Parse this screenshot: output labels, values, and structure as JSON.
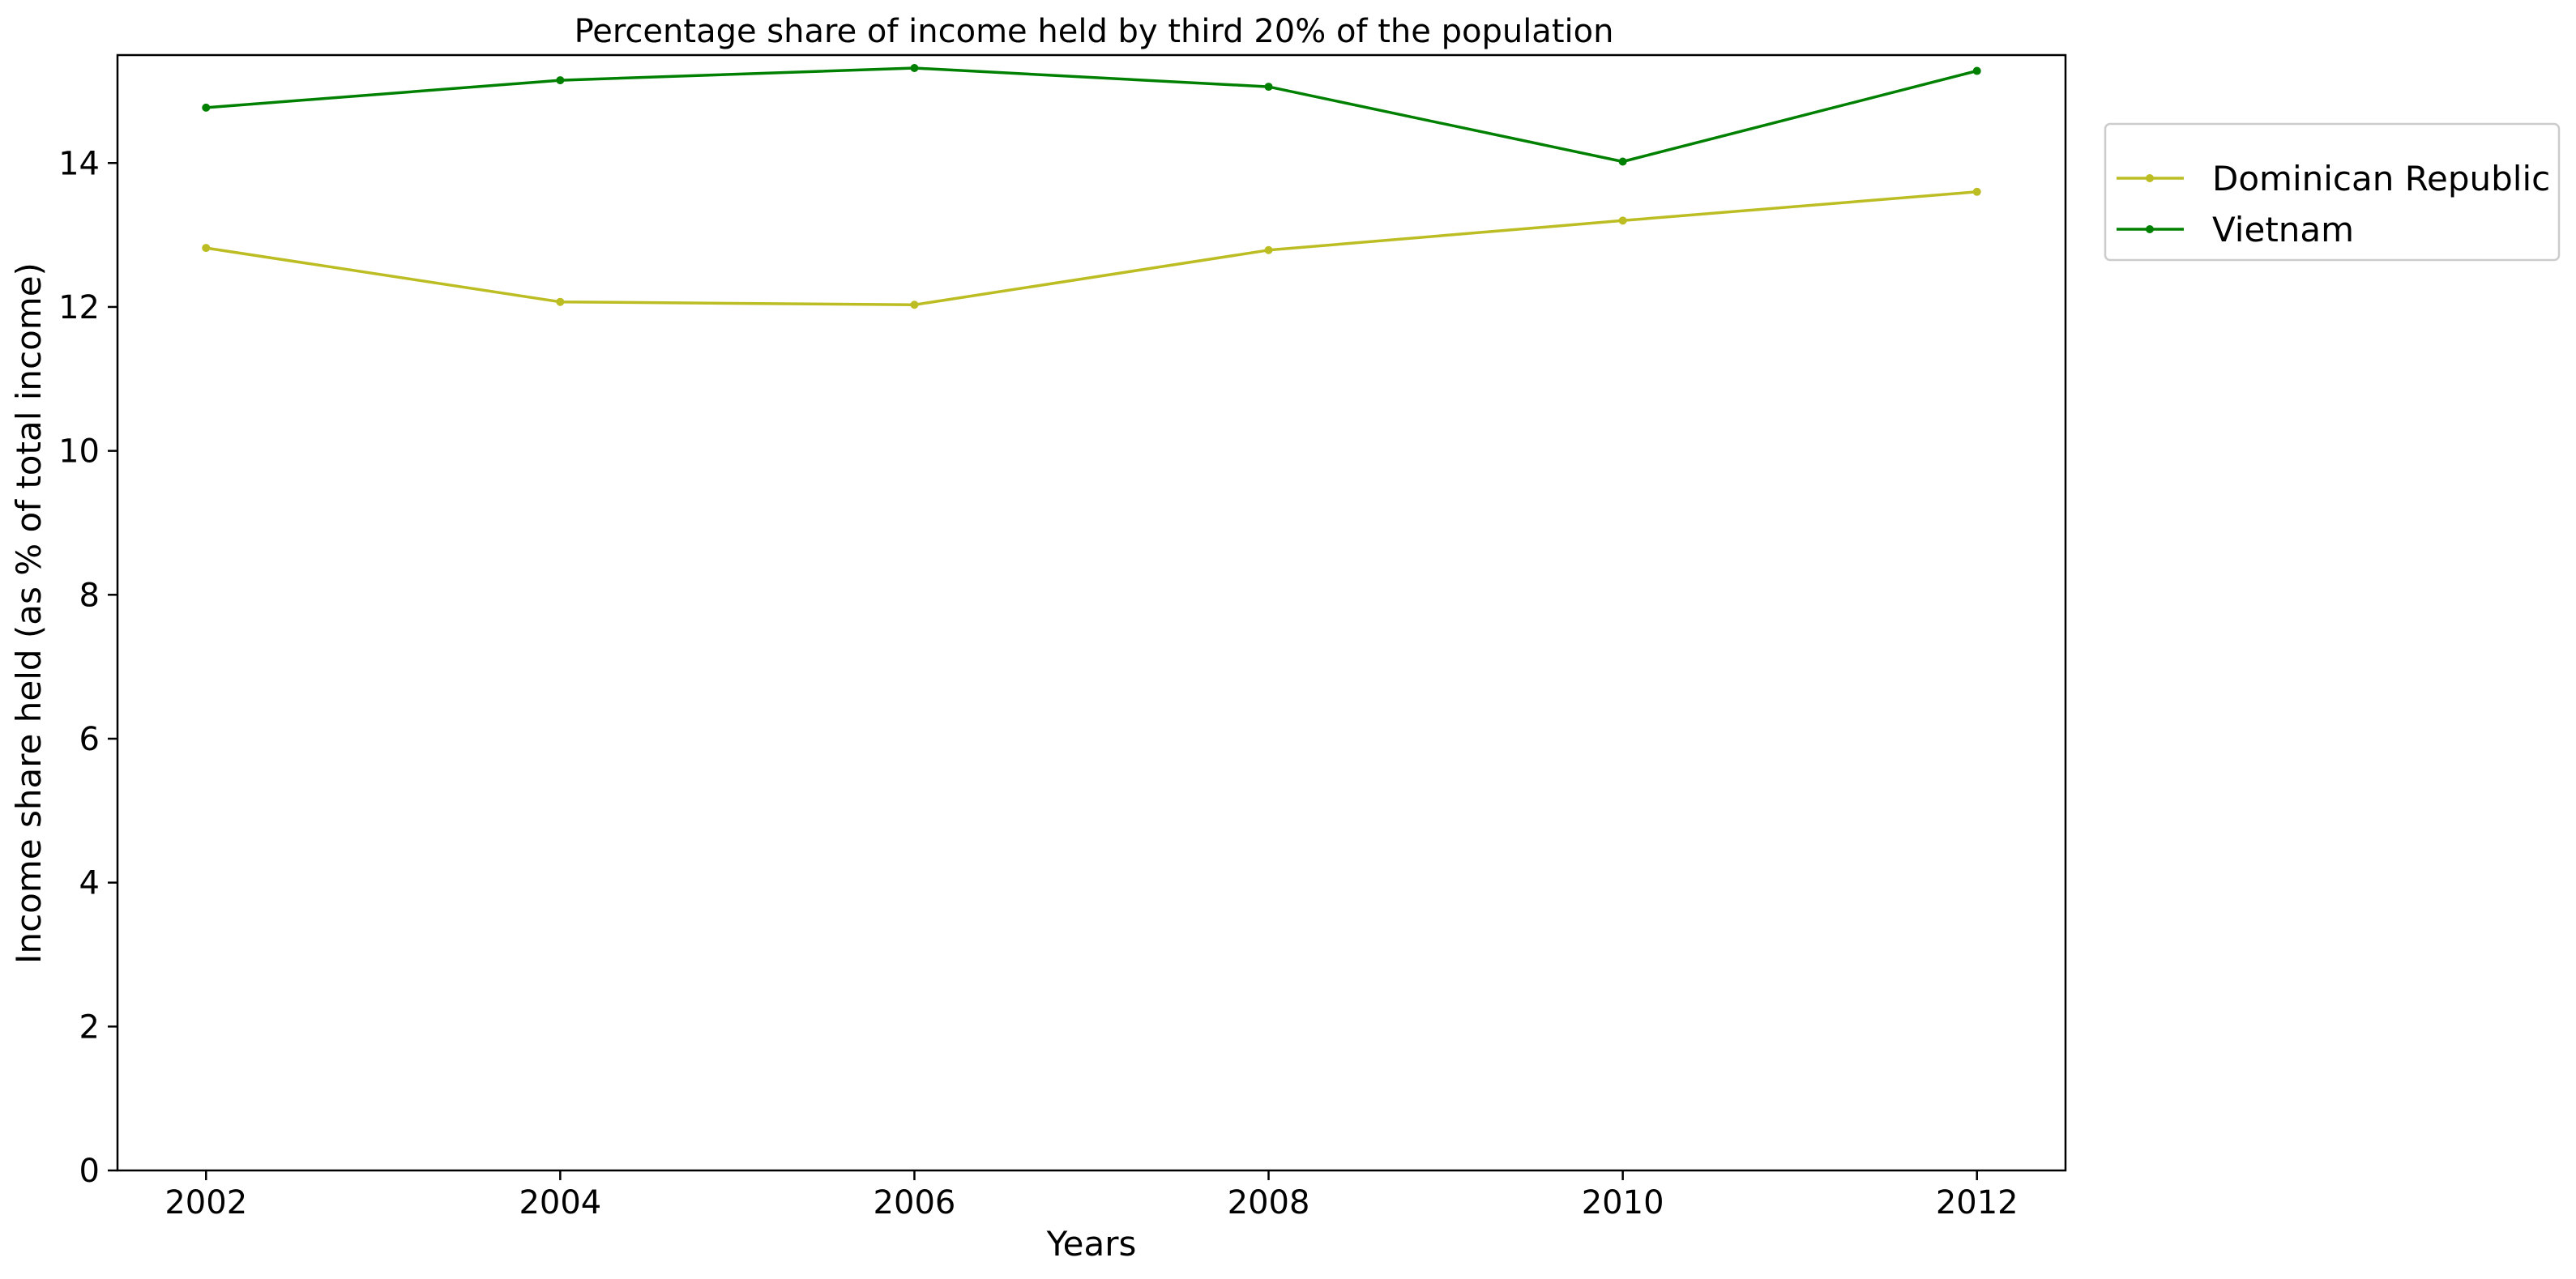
{
  "chart_data": {
    "type": "line",
    "title": "Percentage share of income held by third 20% of the population",
    "xlabel": "Years",
    "ylabel": "Income share held (as % of total income)",
    "x": [
      2002,
      2004,
      2006,
      2008,
      2010,
      2012
    ],
    "x_ticks": [
      "2002",
      "2004",
      "2006",
      "2008",
      "2010",
      "2012"
    ],
    "y_ticks": [
      "0",
      "2",
      "4",
      "6",
      "8",
      "10",
      "12",
      "14"
    ],
    "xlim": [
      2001.5,
      2012.5
    ],
    "ylim": [
      0,
      15.5
    ],
    "grid": false,
    "legend_position": "outside-top-right",
    "series": [
      {
        "name": "Dominican Republic",
        "color": "#bcbd22",
        "values": [
          12.82,
          12.07,
          12.03,
          12.79,
          13.2,
          13.6
        ]
      },
      {
        "name": "Vietnam",
        "color": "#008000",
        "values": [
          14.77,
          15.15,
          15.32,
          15.06,
          14.02,
          15.28
        ]
      }
    ]
  }
}
